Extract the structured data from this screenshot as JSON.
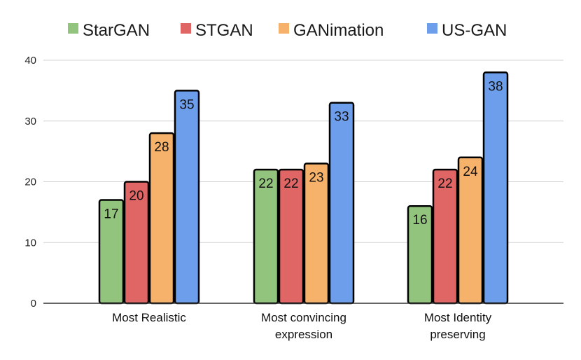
{
  "chart_data": {
    "type": "bar",
    "title": "",
    "xlabel": "",
    "ylabel": "",
    "ylim": [
      0,
      40
    ],
    "yticks": [
      0,
      10,
      20,
      30,
      40
    ],
    "grid": true,
    "legend_position": "top",
    "categories": [
      "Most Realistic",
      "Most convincing expression",
      "Most Identity preserving"
    ],
    "series": [
      {
        "name": "StarGAN",
        "color": "#93c47d",
        "values": [
          17,
          22,
          16
        ]
      },
      {
        "name": "STGAN",
        "color": "#e06666",
        "values": [
          20,
          22,
          22
        ]
      },
      {
        "name": "GANimation",
        "color": "#f6b26b",
        "values": [
          28,
          23,
          24
        ]
      },
      {
        "name": "US-GAN",
        "color": "#6d9eeb",
        "values": [
          35,
          33,
          38
        ]
      }
    ]
  }
}
